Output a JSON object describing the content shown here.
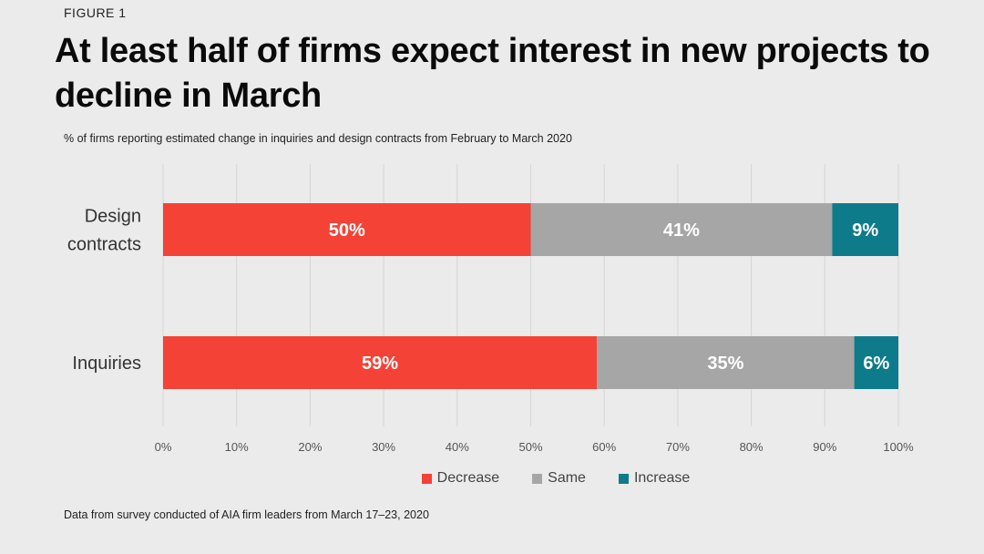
{
  "figure_label": "FIGURE 1",
  "title": "At least half of firms expect interest in new projects to decline in March",
  "subtitle": "% of firms reporting estimated change in inquiries and design contracts from February to March 2020",
  "footnote": "Data from survey conducted of AIA firm leaders from March 17–23, 2020",
  "chart_data": {
    "type": "bar",
    "orientation": "horizontal",
    "stacked": true,
    "categories": [
      "Design contracts",
      "Inquiries"
    ],
    "category_lines": [
      [
        "Design",
        "contracts"
      ],
      [
        "Inquiries"
      ]
    ],
    "series": [
      {
        "name": "Decrease",
        "values": [
          50,
          59
        ],
        "labels": [
          "50%",
          "59%"
        ],
        "color": "#f44236"
      },
      {
        "name": "Same",
        "values": [
          41,
          35
        ],
        "labels": [
          "41%",
          "35%"
        ],
        "color": "#a6a6a6"
      },
      {
        "name": "Increase",
        "values": [
          9,
          6
        ],
        "labels": [
          "9%",
          "6%"
        ],
        "color": "#0e7b8a"
      }
    ],
    "xlim": [
      0,
      100
    ],
    "xticks": [
      0,
      10,
      20,
      30,
      40,
      50,
      60,
      70,
      80,
      90,
      100
    ],
    "xtick_labels": [
      "0%",
      "10%",
      "20%",
      "30%",
      "40%",
      "50%",
      "60%",
      "70%",
      "80%",
      "90%",
      "100%"
    ],
    "grid": true,
    "legend_position": "bottom-center"
  }
}
